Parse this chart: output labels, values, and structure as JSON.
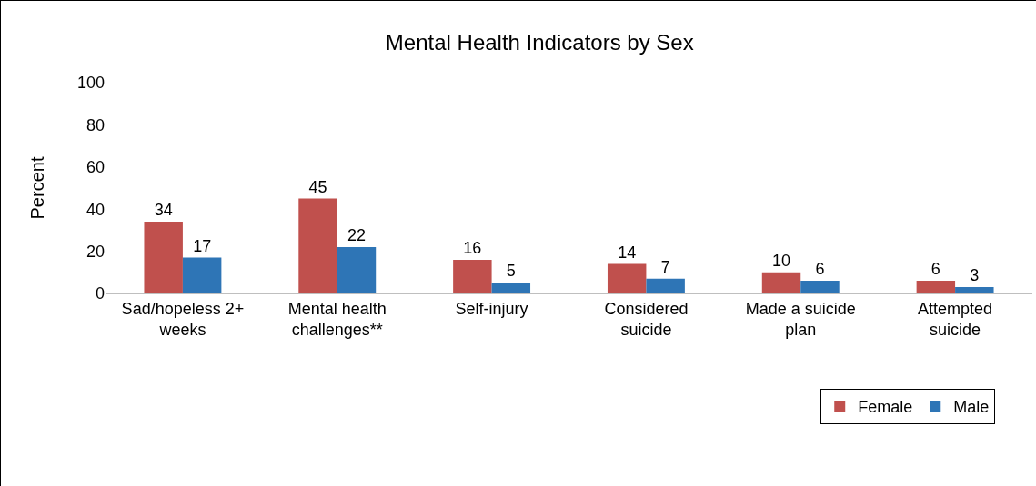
{
  "chart_data": {
    "type": "bar",
    "title": "Mental Health Indicators by Sex",
    "ylabel": "Percent",
    "categories": [
      "Sad/hopeless 2+ weeks",
      "Mental health challenges**",
      "Self-injury",
      "Considered suicide",
      "Made a suicide plan",
      "Attempted suicide"
    ],
    "series": [
      {
        "name": "Female",
        "color": "#c0504d",
        "values": [
          34,
          45,
          16,
          14,
          10,
          6
        ]
      },
      {
        "name": "Male",
        "color": "#2e75b6",
        "values": [
          17,
          22,
          5,
          7,
          6,
          3
        ]
      }
    ],
    "ylim": [
      0,
      100
    ],
    "yticks": [
      0,
      20,
      40,
      60,
      80,
      100
    ],
    "grid": false,
    "legend": "bottom right",
    "data_labels": true
  }
}
